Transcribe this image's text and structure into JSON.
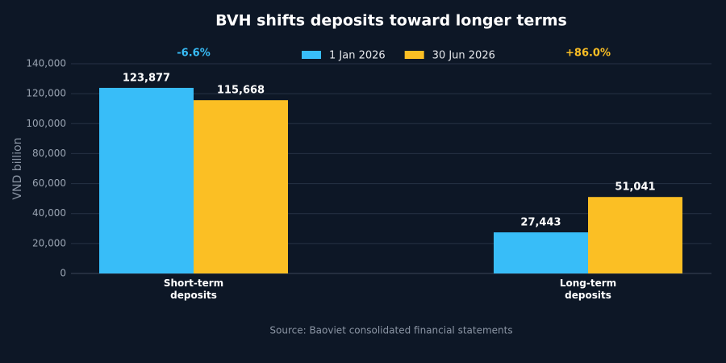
{
  "chart_data": {
    "type": "bar",
    "title": "BVH shifts deposits toward longer terms",
    "categories": [
      "Short-term deposits",
      "Long-term deposits"
    ],
    "series": [
      {
        "name": "1 Jan 2026",
        "color": "#38bdf8",
        "values": [
          123877,
          27443
        ],
        "value_labels": [
          "123,877",
          "27,443"
        ]
      },
      {
        "name": "30 Jun 2026",
        "color": "#fbbf24",
        "values": [
          115668,
          51041
        ],
        "value_labels": [
          "115,668",
          "51,041"
        ]
      }
    ],
    "annotations": [
      {
        "text": "-6.6%",
        "color": "#38bdf8"
      },
      {
        "text": "+86.0%",
        "color": "#fbbf24"
      }
    ],
    "ylabel": "VND billion",
    "ylim": [
      0,
      140000
    ],
    "yticks": [
      0,
      {
        "value": 20000,
        "label": "20,000"
      },
      {
        "value": 40000,
        "label": "40,000"
      },
      {
        "value": 60000,
        "label": "60,000"
      },
      {
        "value": 80000,
        "label": "80,000"
      },
      {
        "value": 100000,
        "label": "100,000"
      },
      {
        "value": 120000,
        "label": "120,000"
      },
      {
        "value": 140000,
        "label": "140,000"
      }
    ],
    "grid": true,
    "legend": "top",
    "source": "Source: Baoviet consolidated financial statements"
  }
}
